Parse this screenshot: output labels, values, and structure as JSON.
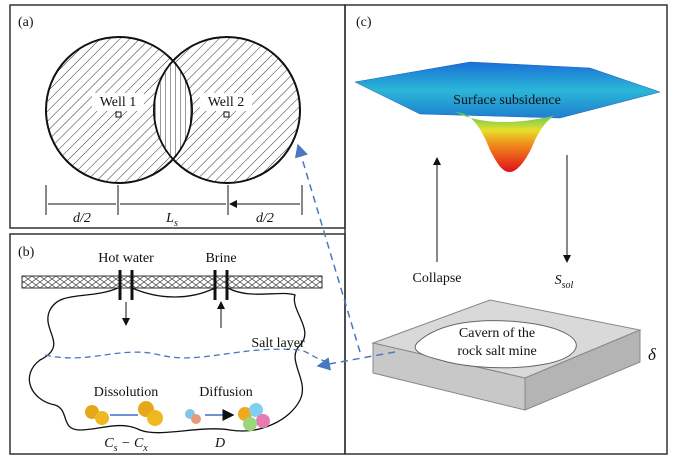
{
  "panel_a": {
    "label": "(a)",
    "wells": [
      "Well 1",
      "Well 2"
    ],
    "dimensions": [
      {
        "text": "d/2"
      },
      {
        "text": "L",
        "sub": "s"
      },
      {
        "text": "d/2"
      }
    ]
  },
  "panel_b": {
    "label": "(b)",
    "inlets": [
      "Hot water",
      "Brine"
    ],
    "layer": "Salt layer",
    "processes": [
      {
        "name": "Dissolution",
        "formula": [
          {
            "text": "C",
            "sub": "s"
          },
          {
            "text": " − C",
            "sub": "x"
          }
        ]
      },
      {
        "name": "Diffusion",
        "formula": [
          {
            "text": "D"
          }
        ]
      }
    ]
  },
  "panel_c": {
    "label": "(c)",
    "surface": "Surface subsidence",
    "collapse": "Collapse",
    "settlement": {
      "text": "S",
      "sub": "sol"
    },
    "cavern": [
      "Cavern of the",
      "rock salt mine"
    ],
    "thickness": "δ"
  }
}
